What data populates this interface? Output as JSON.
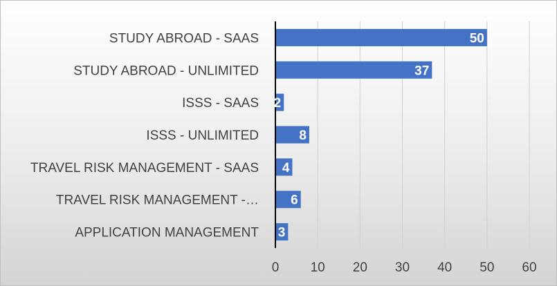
{
  "chart_data": {
    "type": "bar",
    "orientation": "horizontal",
    "title": "",
    "xlabel": "",
    "ylabel": "",
    "categories": [
      "STUDY ABROAD - SAAS",
      "STUDY ABROAD - UNLIMITED",
      "ISSS - SAAS",
      "ISSS - UNLIMITED",
      "TRAVEL RISK MANAGEMENT  - SAAS",
      "TRAVEL RISK MANAGEMENT  -…",
      "APPLICATION MANAGEMENT"
    ],
    "values": [
      50,
      37,
      2,
      8,
      4,
      6,
      3
    ],
    "data_labels": [
      "50",
      "37",
      "2",
      "8",
      "4",
      "6",
      "3"
    ],
    "xlim": [
      0,
      60
    ],
    "xticks": [
      "0",
      "10",
      "20",
      "30",
      "40",
      "50",
      "60"
    ],
    "grid": true,
    "legend": "none",
    "colors": {
      "bar": "#4472c4",
      "gridline": "#d0d0d0",
      "axis": "#000000",
      "text": "#404040",
      "data_label": "#ffffff"
    }
  }
}
